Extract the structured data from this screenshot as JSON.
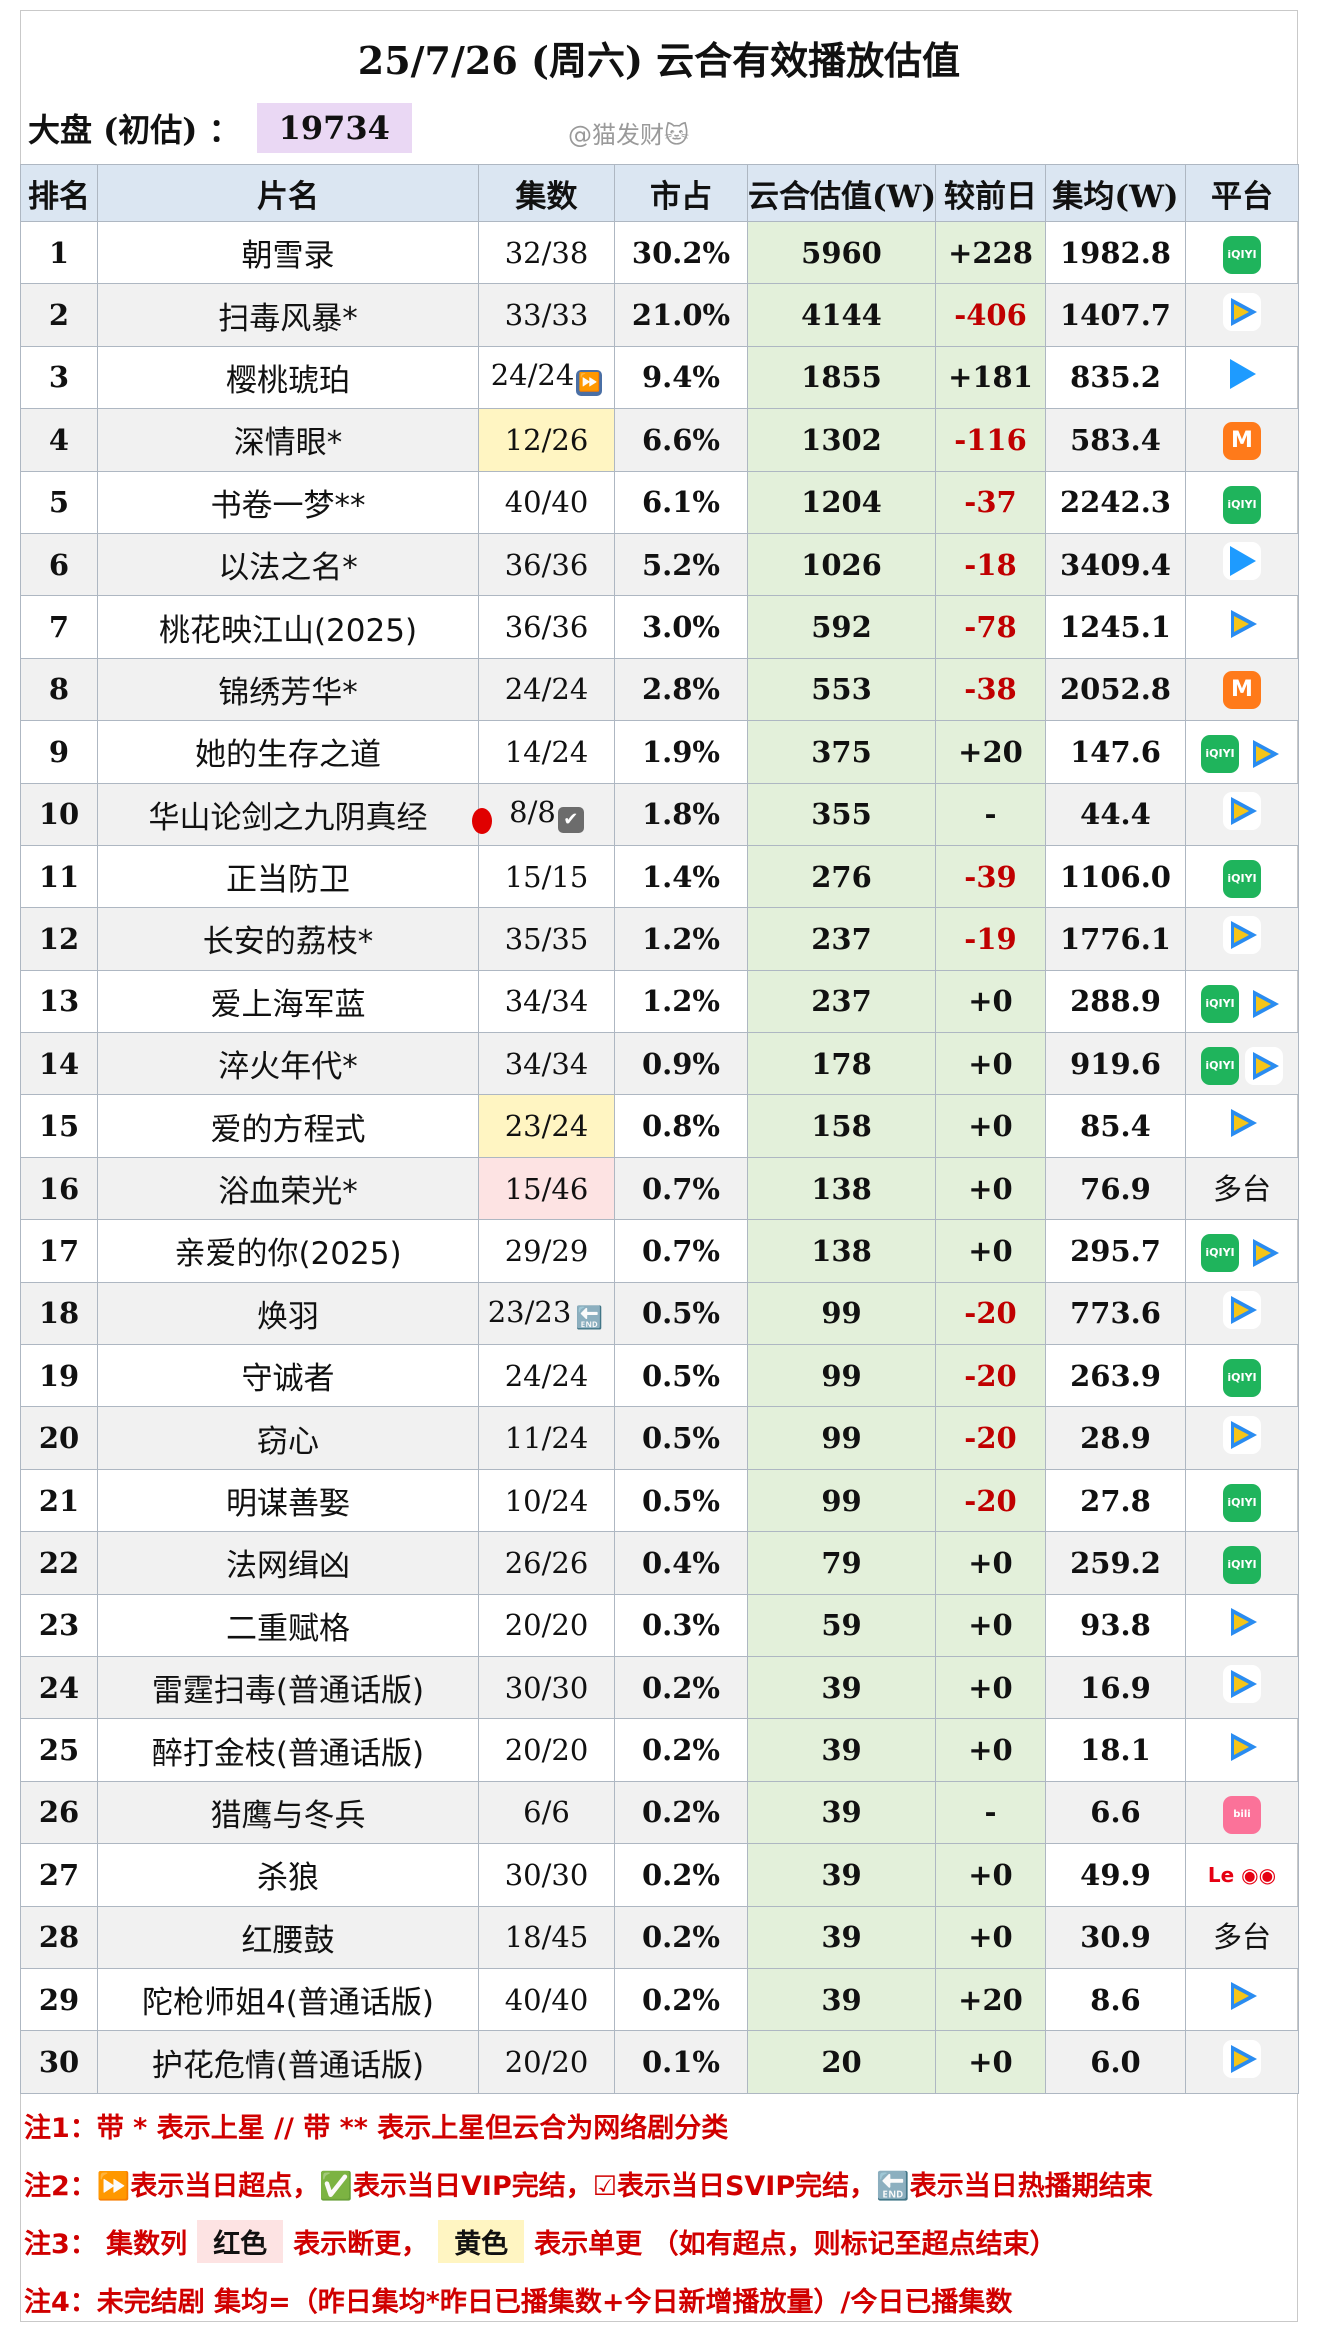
{
  "title": "25/7/26 (周六) 云合有效播放估值",
  "dapan": {
    "label": "大盘 (初估) ：",
    "value": "19734"
  },
  "watermark": "@猫发财🐱",
  "headers": [
    "排名",
    "片名",
    "集数",
    "市占",
    "云合估值(W)",
    "较前日",
    "集均(W)",
    "平台"
  ],
  "rows": [
    {
      "rank": "1",
      "name": "朝雪录",
      "ep": "32/38",
      "share": "30.2%",
      "est": "5960",
      "chg": "+228",
      "avg": "1982.8",
      "plat": [
        "iqiyi"
      ]
    },
    {
      "rank": "2",
      "name": "扫毒风暴*",
      "ep": "33/33",
      "share": "21.0%",
      "est": "4144",
      "chg": "-406",
      "avg": "1407.7",
      "plat": [
        "tencent"
      ]
    },
    {
      "rank": "3",
      "name": "樱桃琥珀",
      "ep": "24/24",
      "epmark": "ff",
      "share": "9.4%",
      "est": "1855",
      "chg": "+181",
      "avg": "835.2",
      "plat": [
        "youku"
      ]
    },
    {
      "rank": "4",
      "name": "深情眼*",
      "ep": "12/26",
      "eptag": "yellow",
      "share": "6.6%",
      "est": "1302",
      "chg": "-116",
      "avg": "583.4",
      "plat": [
        "mgtv"
      ]
    },
    {
      "rank": "5",
      "name": "书卷一梦**",
      "ep": "40/40",
      "share": "6.1%",
      "est": "1204",
      "chg": "-37",
      "avg": "2242.3",
      "plat": [
        "iqiyi"
      ]
    },
    {
      "rank": "6",
      "name": "以法之名*",
      "ep": "36/36",
      "share": "5.2%",
      "est": "1026",
      "chg": "-18",
      "avg": "3409.4",
      "plat": [
        "youku"
      ]
    },
    {
      "rank": "7",
      "name": "桃花映江山(2025)",
      "ep": "36/36",
      "share": "3.0%",
      "est": "592",
      "chg": "-78",
      "avg": "1245.1",
      "plat": [
        "tencent"
      ]
    },
    {
      "rank": "8",
      "name": "锦绣芳华*",
      "ep": "24/24",
      "share": "2.8%",
      "est": "553",
      "chg": "-38",
      "avg": "2052.8",
      "plat": [
        "mgtv"
      ]
    },
    {
      "rank": "9",
      "name": "她的生存之道",
      "ep": "14/24",
      "share": "1.9%",
      "est": "375",
      "chg": "+20",
      "avg": "147.6",
      "plat": [
        "iqiyi",
        "tencent"
      ]
    },
    {
      "rank": "10",
      "name": "华山论剑之九阴真经",
      "ep": "8/8",
      "epmark": "svip",
      "share": "1.8%",
      "est": "355",
      "chg": "-",
      "avg": "44.4",
      "plat": [
        "tencent"
      ]
    },
    {
      "rank": "11",
      "name": "正当防卫",
      "ep": "15/15",
      "share": "1.4%",
      "est": "276",
      "chg": "-39",
      "avg": "1106.0",
      "plat": [
        "iqiyi"
      ]
    },
    {
      "rank": "12",
      "name": "长安的荔枝*",
      "ep": "35/35",
      "share": "1.2%",
      "est": "237",
      "chg": "-19",
      "avg": "1776.1",
      "plat": [
        "tencent"
      ]
    },
    {
      "rank": "13",
      "name": "爱上海军蓝",
      "ep": "34/34",
      "share": "1.2%",
      "est": "237",
      "chg": "+0",
      "avg": "288.9",
      "plat": [
        "iqiyi",
        "tencent"
      ]
    },
    {
      "rank": "14",
      "name": "淬火年代*",
      "ep": "34/34",
      "share": "0.9%",
      "est": "178",
      "chg": "+0",
      "avg": "919.6",
      "plat": [
        "iqiyi",
        "tencent"
      ]
    },
    {
      "rank": "15",
      "name": "爱的方程式",
      "ep": "23/24",
      "eptag": "yellow",
      "share": "0.8%",
      "est": "158",
      "chg": "+0",
      "avg": "85.4",
      "plat": [
        "tencent"
      ]
    },
    {
      "rank": "16",
      "name": "浴血荣光*",
      "ep": "15/46",
      "eptag": "red",
      "share": "0.7%",
      "est": "138",
      "chg": "+0",
      "avg": "76.9",
      "plat": [
        "txt:多台"
      ]
    },
    {
      "rank": "17",
      "name": "亲爱的你(2025)",
      "ep": "29/29",
      "share": "0.7%",
      "est": "138",
      "chg": "+0",
      "avg": "295.7",
      "plat": [
        "iqiyi",
        "tencent"
      ]
    },
    {
      "rank": "18",
      "name": "焕羽",
      "ep": "23/23",
      "epmark": "end",
      "share": "0.5%",
      "est": "99",
      "chg": "-20",
      "avg": "773.6",
      "plat": [
        "tencent"
      ]
    },
    {
      "rank": "19",
      "name": "守诚者",
      "ep": "24/24",
      "share": "0.5%",
      "est": "99",
      "chg": "-20",
      "avg": "263.9",
      "plat": [
        "iqiyi"
      ]
    },
    {
      "rank": "20",
      "name": "窃心",
      "ep": "11/24",
      "share": "0.5%",
      "est": "99",
      "chg": "-20",
      "avg": "28.9",
      "plat": [
        "tencent"
      ]
    },
    {
      "rank": "21",
      "name": "明谋善娶",
      "ep": "10/24",
      "share": "0.5%",
      "est": "99",
      "chg": "-20",
      "avg": "27.8",
      "plat": [
        "iqiyi"
      ]
    },
    {
      "rank": "22",
      "name": "法网缉凶",
      "ep": "26/26",
      "share": "0.4%",
      "est": "79",
      "chg": "+0",
      "avg": "259.2",
      "plat": [
        "iqiyi"
      ]
    },
    {
      "rank": "23",
      "name": "二重赋格",
      "ep": "20/20",
      "share": "0.3%",
      "est": "59",
      "chg": "+0",
      "avg": "93.8",
      "plat": [
        "tencent"
      ]
    },
    {
      "rank": "24",
      "name": "雷霆扫毒(普通话版)",
      "ep": "30/30",
      "share": "0.2%",
      "est": "39",
      "chg": "+0",
      "avg": "16.9",
      "plat": [
        "tencent"
      ]
    },
    {
      "rank": "25",
      "name": "醉打金枝(普通话版)",
      "ep": "20/20",
      "share": "0.2%",
      "est": "39",
      "chg": "+0",
      "avg": "18.1",
      "plat": [
        "tencent"
      ]
    },
    {
      "rank": "26",
      "name": "猎鹰与冬兵",
      "ep": "6/6",
      "share": "0.2%",
      "est": "39",
      "chg": "-",
      "avg": "6.6",
      "plat": [
        "bili"
      ]
    },
    {
      "rank": "27",
      "name": "杀狼",
      "ep": "30/30",
      "share": "0.2%",
      "est": "39",
      "chg": "+0",
      "avg": "49.9",
      "plat": [
        "le"
      ]
    },
    {
      "rank": "28",
      "name": "红腰鼓",
      "ep": "18/45",
      "share": "0.2%",
      "est": "39",
      "chg": "+0",
      "avg": "30.9",
      "plat": [
        "txt:多台"
      ]
    },
    {
      "rank": "29",
      "name": "陀枪师姐4(普通话版)",
      "ep": "40/40",
      "share": "0.2%",
      "est": "39",
      "chg": "+20",
      "avg": "8.6",
      "plat": [
        "tencent"
      ]
    },
    {
      "rank": "30",
      "name": "护花危情(普通话版)",
      "ep": "20/20",
      "share": "0.1%",
      "est": "20",
      "chg": "+0",
      "avg": "6.0",
      "plat": [
        "tencent"
      ]
    }
  ],
  "notes": {
    "n1": "注1：带 * 表示上星 // 带 ** 表示上星但云合为网络剧分类",
    "n2": "注2：⏩表示当日超点，✅表示当日VIP完结，☑表示当日SVIP完结，🔚表示当日热播期结束",
    "n3_a": "注3：  集数列",
    "n3_red": "红色",
    "n3_b": "表示断更，",
    "n3_yellow": "黄色",
    "n3_c": "表示单更 （如有超点，则标记至超点结束）",
    "n4": "注4：未完结剧 集均=（昨日集均*昨日已播集数+今日新增播放量）/今日已播集数"
  }
}
